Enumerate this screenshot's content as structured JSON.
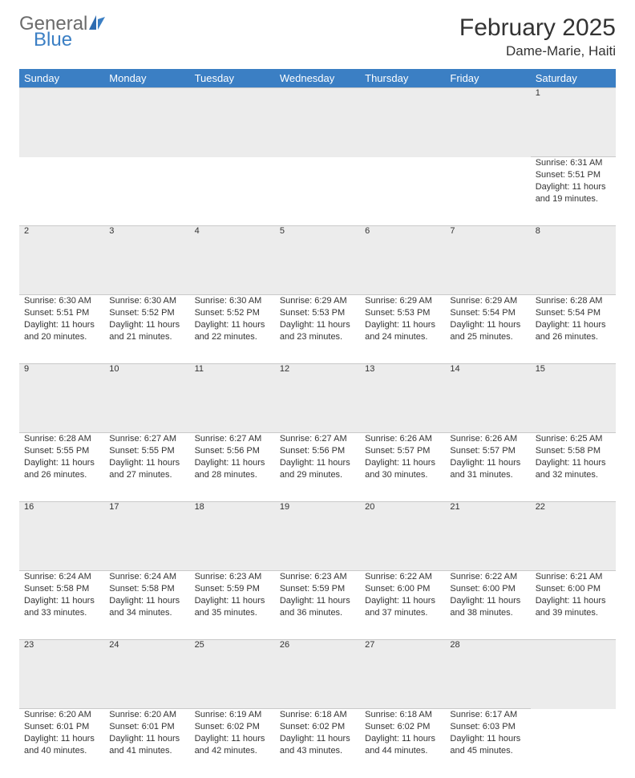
{
  "brand": {
    "word1": "General",
    "word2": "Blue",
    "accent_color": "#3b7fc4",
    "gray_color": "#6b6b6b"
  },
  "title": "February 2025",
  "location": "Dame-Marie, Haiti",
  "colors": {
    "header_bg": "#3b7fc4",
    "header_fg": "#ffffff",
    "daynum_bg": "#ececec",
    "border": "#c9c9c9",
    "text": "#333333"
  },
  "days_of_week": [
    "Sunday",
    "Monday",
    "Tuesday",
    "Wednesday",
    "Thursday",
    "Friday",
    "Saturday"
  ],
  "weeks": [
    [
      null,
      null,
      null,
      null,
      null,
      null,
      {
        "n": "1",
        "sr": "6:31 AM",
        "ss": "5:51 PM",
        "dl": "11 hours and 19 minutes."
      }
    ],
    [
      {
        "n": "2",
        "sr": "6:30 AM",
        "ss": "5:51 PM",
        "dl": "11 hours and 20 minutes."
      },
      {
        "n": "3",
        "sr": "6:30 AM",
        "ss": "5:52 PM",
        "dl": "11 hours and 21 minutes."
      },
      {
        "n": "4",
        "sr": "6:30 AM",
        "ss": "5:52 PM",
        "dl": "11 hours and 22 minutes."
      },
      {
        "n": "5",
        "sr": "6:29 AM",
        "ss": "5:53 PM",
        "dl": "11 hours and 23 minutes."
      },
      {
        "n": "6",
        "sr": "6:29 AM",
        "ss": "5:53 PM",
        "dl": "11 hours and 24 minutes."
      },
      {
        "n": "7",
        "sr": "6:29 AM",
        "ss": "5:54 PM",
        "dl": "11 hours and 25 minutes."
      },
      {
        "n": "8",
        "sr": "6:28 AM",
        "ss": "5:54 PM",
        "dl": "11 hours and 26 minutes."
      }
    ],
    [
      {
        "n": "9",
        "sr": "6:28 AM",
        "ss": "5:55 PM",
        "dl": "11 hours and 26 minutes."
      },
      {
        "n": "10",
        "sr": "6:27 AM",
        "ss": "5:55 PM",
        "dl": "11 hours and 27 minutes."
      },
      {
        "n": "11",
        "sr": "6:27 AM",
        "ss": "5:56 PM",
        "dl": "11 hours and 28 minutes."
      },
      {
        "n": "12",
        "sr": "6:27 AM",
        "ss": "5:56 PM",
        "dl": "11 hours and 29 minutes."
      },
      {
        "n": "13",
        "sr": "6:26 AM",
        "ss": "5:57 PM",
        "dl": "11 hours and 30 minutes."
      },
      {
        "n": "14",
        "sr": "6:26 AM",
        "ss": "5:57 PM",
        "dl": "11 hours and 31 minutes."
      },
      {
        "n": "15",
        "sr": "6:25 AM",
        "ss": "5:58 PM",
        "dl": "11 hours and 32 minutes."
      }
    ],
    [
      {
        "n": "16",
        "sr": "6:24 AM",
        "ss": "5:58 PM",
        "dl": "11 hours and 33 minutes."
      },
      {
        "n": "17",
        "sr": "6:24 AM",
        "ss": "5:58 PM",
        "dl": "11 hours and 34 minutes."
      },
      {
        "n": "18",
        "sr": "6:23 AM",
        "ss": "5:59 PM",
        "dl": "11 hours and 35 minutes."
      },
      {
        "n": "19",
        "sr": "6:23 AM",
        "ss": "5:59 PM",
        "dl": "11 hours and 36 minutes."
      },
      {
        "n": "20",
        "sr": "6:22 AM",
        "ss": "6:00 PM",
        "dl": "11 hours and 37 minutes."
      },
      {
        "n": "21",
        "sr": "6:22 AM",
        "ss": "6:00 PM",
        "dl": "11 hours and 38 minutes."
      },
      {
        "n": "22",
        "sr": "6:21 AM",
        "ss": "6:00 PM",
        "dl": "11 hours and 39 minutes."
      }
    ],
    [
      {
        "n": "23",
        "sr": "6:20 AM",
        "ss": "6:01 PM",
        "dl": "11 hours and 40 minutes."
      },
      {
        "n": "24",
        "sr": "6:20 AM",
        "ss": "6:01 PM",
        "dl": "11 hours and 41 minutes."
      },
      {
        "n": "25",
        "sr": "6:19 AM",
        "ss": "6:02 PM",
        "dl": "11 hours and 42 minutes."
      },
      {
        "n": "26",
        "sr": "6:18 AM",
        "ss": "6:02 PM",
        "dl": "11 hours and 43 minutes."
      },
      {
        "n": "27",
        "sr": "6:18 AM",
        "ss": "6:02 PM",
        "dl": "11 hours and 44 minutes."
      },
      {
        "n": "28",
        "sr": "6:17 AM",
        "ss": "6:03 PM",
        "dl": "11 hours and 45 minutes."
      },
      null
    ]
  ],
  "labels": {
    "sunrise": "Sunrise:",
    "sunset": "Sunset:",
    "daylight": "Daylight:"
  }
}
